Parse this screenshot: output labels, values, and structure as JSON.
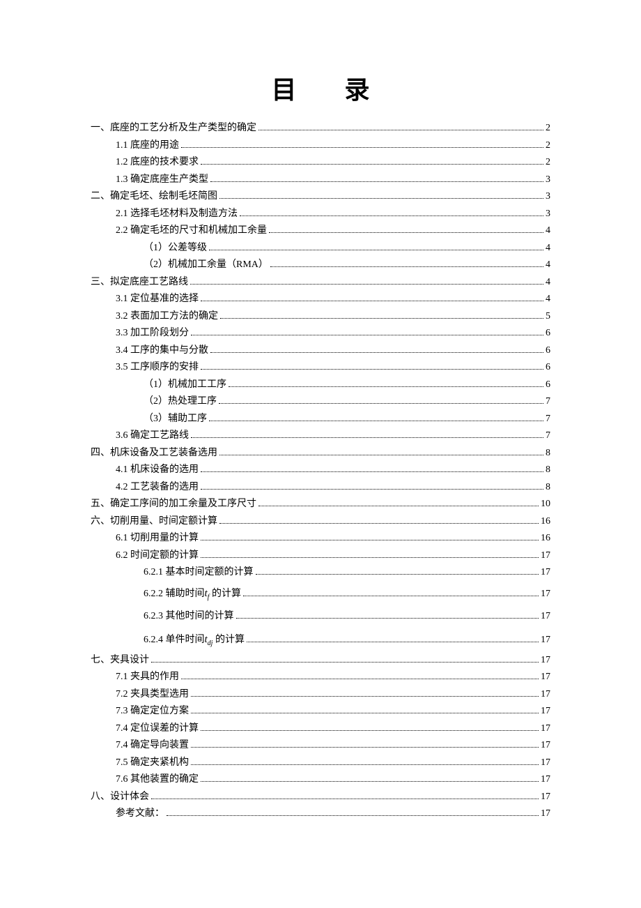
{
  "title": "目 录",
  "entries": [
    {
      "level": 0,
      "label": "一、底座的工艺分析及生产类型的确定",
      "page": "2"
    },
    {
      "level": 1,
      "label": "1.1 底座的用途",
      "page": "2"
    },
    {
      "level": 1,
      "label": "1.2 底座的技术要求",
      "page": "2"
    },
    {
      "level": 1,
      "label": "1.3 确定底座生产类型",
      "page": "3"
    },
    {
      "level": 0,
      "label": "二、确定毛坯、绘制毛坯简图",
      "page": "3"
    },
    {
      "level": 1,
      "label": "2.1 选择毛坯材料及制造方法",
      "page": "3"
    },
    {
      "level": 1,
      "label": "2.2 确定毛坯的尺寸和机械加工余量",
      "page": "4"
    },
    {
      "level": 2,
      "label": "（1）公差等级",
      "page": "4"
    },
    {
      "level": 2,
      "label": "（2）机械加工余量（RMA）",
      "page": "4"
    },
    {
      "level": 0,
      "label": "三、拟定底座工艺路线",
      "page": "4"
    },
    {
      "level": 1,
      "label": "3.1 定位基准的选择",
      "page": "4"
    },
    {
      "level": 1,
      "label": "3.2 表面加工方法的确定",
      "page": "5"
    },
    {
      "level": 1,
      "label": "3.3 加工阶段划分",
      "page": "6"
    },
    {
      "level": 1,
      "label": "3.4 工序的集中与分散",
      "page": "6"
    },
    {
      "level": 1,
      "label": "3.5 工序顺序的安排",
      "page": "6"
    },
    {
      "level": 2,
      "label": "（1）机械加工工序",
      "page": "6"
    },
    {
      "level": 2,
      "label": "（2）热处理工序",
      "page": "7"
    },
    {
      "level": 2,
      "label": "（3）辅助工序",
      "page": "7"
    },
    {
      "level": 1,
      "label": "3.6 确定工艺路线",
      "page": "7"
    },
    {
      "level": 0,
      "label": "四、机床设备及工艺装备选用",
      "page": "8"
    },
    {
      "level": 1,
      "label": "4.1 机床设备的选用",
      "page": "8"
    },
    {
      "level": 1,
      "label": "4.2 工艺装备的选用",
      "page": "8"
    },
    {
      "level": 0,
      "label": "五、确定工序间的加工余量及工序尺寸",
      "page": "10"
    },
    {
      "level": 0,
      "label": "六、切削用量、时间定额计算",
      "page": "16"
    },
    {
      "level": 1,
      "label": "6.1 切削用量的计算",
      "page": "16"
    },
    {
      "level": 1,
      "label": "6.2 时间定额的计算",
      "page": "17"
    },
    {
      "level": 2,
      "label": "6.2.1 基本时间定额的计算",
      "page": "17"
    },
    {
      "level": 2,
      "math": true,
      "prefix": "6.2.2 辅助时间",
      "var": "t",
      "sub": "f",
      "suffix": " 的计算",
      "page": "17"
    },
    {
      "level": 2,
      "math": true,
      "prefix": "6.2.3 其他时间的计算",
      "var": "",
      "sub": "",
      "suffix": "",
      "page": "17"
    },
    {
      "level": 2,
      "math": true,
      "prefix": "6.2.4 单件时间",
      "var": "t",
      "sub": "dj",
      "suffix": " 的计算",
      "page": "17"
    },
    {
      "level": 0,
      "label": "七、夹具设计",
      "page": "17"
    },
    {
      "level": 1,
      "label": "7.1 夹具的作用",
      "page": "17"
    },
    {
      "level": 1,
      "label": "7.2 夹具类型选用",
      "page": "17"
    },
    {
      "level": 1,
      "label": "7.3 确定定位方案",
      "page": "17"
    },
    {
      "level": 1,
      "label": "7.4 定位误差的计算",
      "page": "17"
    },
    {
      "level": 1,
      "label": "7.4 确定导向装置",
      "page": "17"
    },
    {
      "level": 1,
      "label": "7.5 确定夹紧机构",
      "page": "17"
    },
    {
      "level": 1,
      "label": "7.6 其他装置的确定",
      "page": "17"
    },
    {
      "level": 0,
      "label": "八、设计体会",
      "page": "17"
    },
    {
      "level": 1,
      "label": "参考文献：",
      "page": "17"
    }
  ],
  "colors": {
    "background": "#ffffff",
    "text": "#000000",
    "dots": "#000000"
  },
  "typography": {
    "title_fontsize": 36,
    "body_fontsize": 14,
    "font_family": "SimSun"
  }
}
